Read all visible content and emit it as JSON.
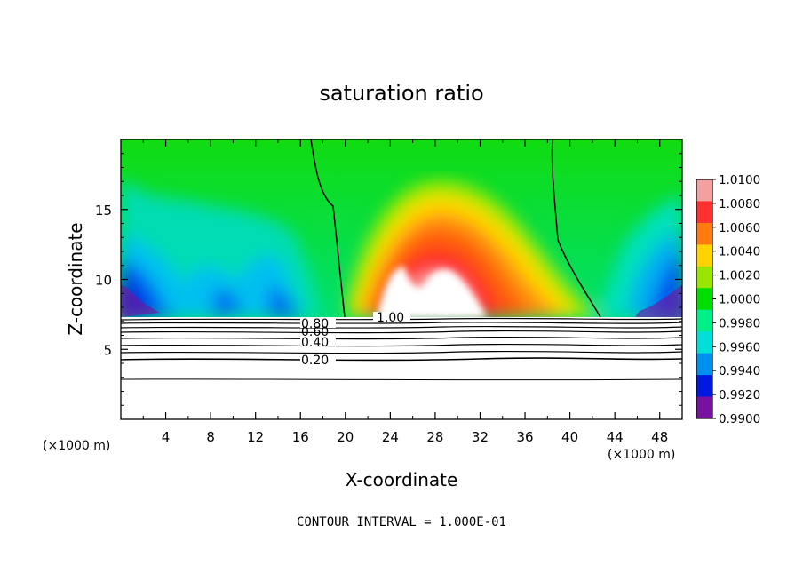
{
  "chart_data": {
    "type": "heatmap",
    "title": "saturation ratio",
    "xlabel": "X-coordinate",
    "ylabel": "Z-coordinate",
    "x_unit_left": "(×1000 m)",
    "x_unit_right": "(×1000 m)",
    "footer": "CONTOUR INTERVAL = 1.000E-01",
    "xlim": [
      0,
      50
    ],
    "ylim": [
      0,
      20
    ],
    "x_ticks": [
      4,
      8,
      12,
      16,
      20,
      24,
      28,
      32,
      36,
      40,
      44,
      48
    ],
    "y_ticks": [
      5,
      10,
      15
    ],
    "colorbar": {
      "labels": [
        "1.0100",
        "1.0080",
        "1.0060",
        "1.0040",
        "1.0020",
        "1.0000",
        "0.9980",
        "0.9960",
        "0.9940",
        "0.9920",
        "0.9900"
      ],
      "colors": [
        "#f4a0a0",
        "#ff3030",
        "#ff7a10",
        "#ffd200",
        "#98e600",
        "#00dd00",
        "#00f088",
        "#00e0d8",
        "#0090f0",
        "#0018e0",
        "#7810a0"
      ]
    },
    "contour_labels": [
      {
        "text": "0.80",
        "x": 13.3,
        "z": 6.9
      },
      {
        "text": "0.60",
        "x": 13.3,
        "z": 6.4
      },
      {
        "text": "0.40",
        "x": 13.3,
        "z": 5.6
      },
      {
        "text": "0.20",
        "x": 13.3,
        "z": 4.3
      },
      {
        "text": "1.00",
        "x": 19.4,
        "z": 7.1
      }
    ],
    "contours_below_cloud_base_z": [
      7.2,
      7.0,
      6.8,
      6.5,
      6.2,
      5.8,
      5.3,
      4.4,
      3.0
    ],
    "cloud_base_z": 7.3,
    "sr_one_contour_left_x": [
      17.2,
      19.4
    ],
    "sr_one_contour_right_x": [
      38.8,
      42.6
    ]
  }
}
